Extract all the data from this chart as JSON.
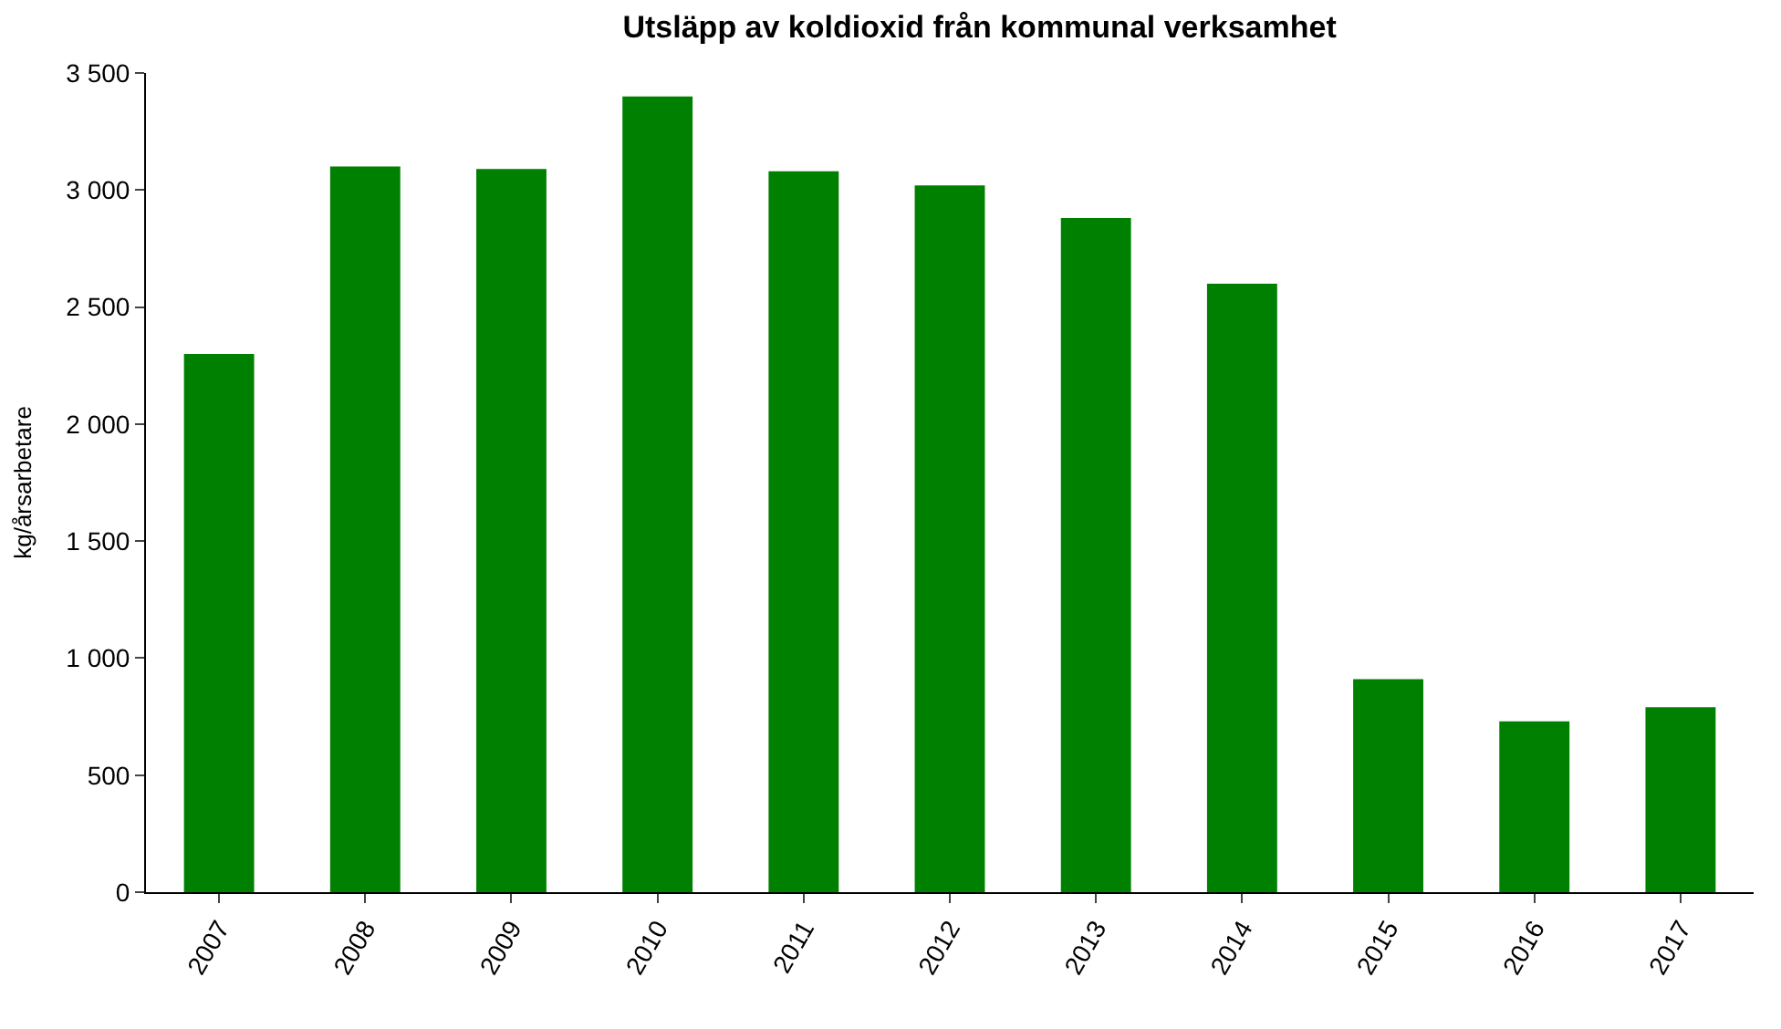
{
  "chart_data": {
    "type": "bar",
    "title": "Utsläpp av koldioxid från kommunal verksamhet",
    "ylabel": "kg/årsarbetare",
    "categories": [
      "2007",
      "2008",
      "2009",
      "2010",
      "2011",
      "2012",
      "2013",
      "2014",
      "2015",
      "2016",
      "2017"
    ],
    "values": [
      2300,
      3100,
      3090,
      3400,
      3080,
      3020,
      2880,
      2600,
      910,
      730,
      790
    ],
    "color": "#008000",
    "ylim": [
      0,
      3500
    ],
    "yticks": [
      0,
      500,
      {
        "value": 1000,
        "label": "1 000"
      },
      {
        "value": 1500,
        "label": "1 500"
      },
      {
        "value": 2000,
        "label": "2 000"
      },
      {
        "value": 2500,
        "label": "2 500"
      },
      {
        "value": 3000,
        "label": "3 000"
      },
      {
        "value": 3500,
        "label": "3 500"
      }
    ],
    "grid": false
  }
}
